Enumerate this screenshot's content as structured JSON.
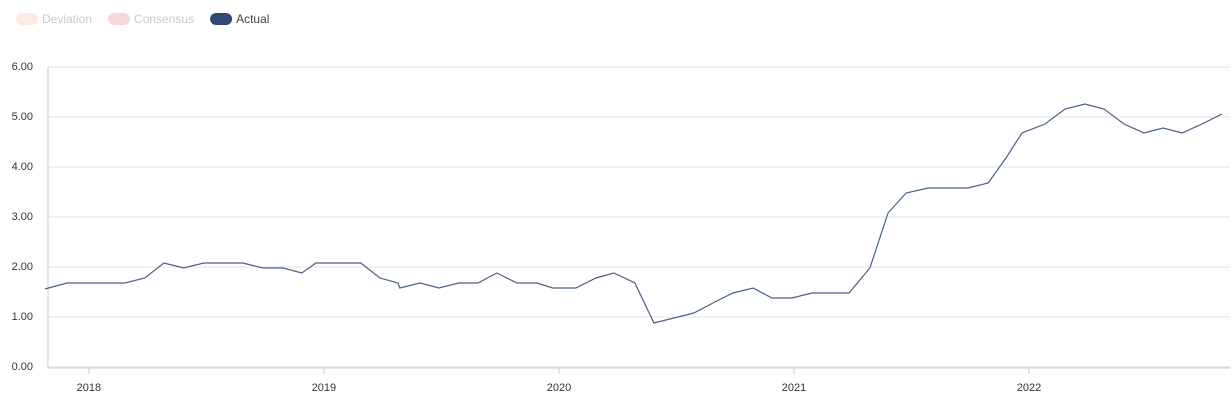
{
  "chart_data": {
    "type": "line",
    "legend": [
      {
        "name": "Deviation",
        "color": "#fcebe0",
        "text_color": "#c9c9c9"
      },
      {
        "name": "Consensus",
        "color": "#f6d8d6",
        "text_color": "#c9c9c9"
      },
      {
        "name": "Actual",
        "color": "#2e4a73",
        "text_color": "#444444"
      }
    ],
    "x": [
      2017.813,
      2017.906,
      2017.987,
      2018.072,
      2018.153,
      2018.238,
      2018.319,
      2018.404,
      2018.489,
      2018.574,
      2018.655,
      2018.74,
      2018.826,
      2018.906,
      2018.966,
      2019.072,
      2019.157,
      2019.238,
      2019.315,
      2019.323,
      2019.409,
      2019.489,
      2019.574,
      2019.655,
      2019.736,
      2019.821,
      2019.906,
      2019.974,
      2020.072,
      2020.157,
      2020.234,
      2020.323,
      2020.404,
      2020.489,
      2020.574,
      2020.655,
      2020.74,
      2020.826,
      2020.906,
      2020.991,
      2021.077,
      2021.157,
      2021.234,
      2021.323,
      2021.4,
      2021.477,
      2021.57,
      2021.66,
      2021.74,
      2021.826,
      2021.902,
      2021.97,
      2022.068,
      2022.153,
      2022.238,
      2022.319,
      2022.404,
      2022.489,
      2022.57,
      2022.651,
      2022.736,
      2022.821
    ],
    "series": [
      {
        "name": "Actual",
        "color": "#4a6186",
        "values": [
          1.56,
          1.68,
          1.68,
          1.68,
          1.68,
          1.78,
          2.08,
          1.98,
          2.08,
          2.08,
          2.08,
          1.98,
          1.98,
          1.88,
          2.08,
          2.08,
          2.08,
          1.78,
          1.68,
          1.58,
          1.68,
          1.58,
          1.68,
          1.68,
          1.88,
          1.68,
          1.68,
          1.58,
          1.58,
          1.78,
          1.88,
          1.68,
          0.88,
          0.98,
          1.08,
          1.28,
          1.48,
          1.58,
          1.38,
          1.38,
          1.48,
          1.48,
          1.48,
          1.98,
          3.08,
          3.48,
          3.58,
          3.58,
          3.58,
          3.68,
          4.18,
          4.68,
          4.86,
          5.16,
          5.26,
          5.16,
          4.86,
          4.68,
          4.78,
          4.68,
          4.86,
          5.06
        ]
      }
    ],
    "xlim": [
      2017.826,
      2022.821
    ],
    "xticks": [
      2018,
      2019,
      2020,
      2021,
      2022
    ],
    "ylim": [
      0,
      6
    ],
    "yticks": [
      {
        "value": 0,
        "label": "0.00"
      },
      {
        "value": 1,
        "label": "1.00"
      },
      {
        "value": 2,
        "label": "2.00"
      },
      {
        "value": 3,
        "label": "3.00"
      },
      {
        "value": 4,
        "label": "4.00"
      },
      {
        "value": 5,
        "label": "5.00"
      },
      {
        "value": 6,
        "label": "6.00"
      }
    ],
    "grid": true
  }
}
